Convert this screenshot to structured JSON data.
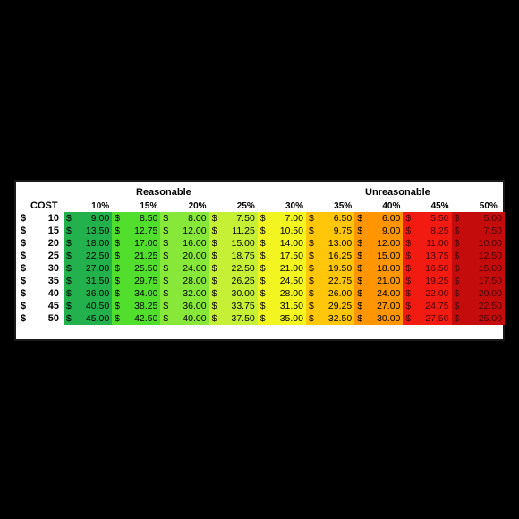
{
  "chart_data": {
    "type": "table",
    "group_labels": {
      "reasonable": "Reasonable",
      "unreasonable": "Unreasonable"
    },
    "row_header": "COST",
    "currency_symbol": "$",
    "columns": [
      "10%",
      "15%",
      "20%",
      "25%",
      "30%",
      "35%",
      "40%",
      "45%",
      "50%"
    ],
    "column_colors": [
      "#22b14c",
      "#52de2d",
      "#88e83a",
      "#c5f035",
      "#f3f520",
      "#ffc60a",
      "#ff9500",
      "#f21b12",
      "#c40c0c"
    ],
    "column_text_colors": [
      "#000000",
      "#000000",
      "#000000",
      "#000000",
      "#000000",
      "#000000",
      "#000000",
      "#4a0505",
      "#4a0505"
    ],
    "rows": [
      {
        "cost": "10",
        "values": [
          "9.00",
          "8.50",
          "8.00",
          "7.50",
          "7.00",
          "6.50",
          "6.00",
          "5.50",
          "5.00"
        ]
      },
      {
        "cost": "15",
        "values": [
          "13.50",
          "12.75",
          "12.00",
          "11.25",
          "10.50",
          "9.75",
          "9.00",
          "8.25",
          "7.50"
        ]
      },
      {
        "cost": "20",
        "values": [
          "18.00",
          "17.00",
          "16.00",
          "15.00",
          "14.00",
          "13.00",
          "12.00",
          "11.00",
          "10.00"
        ]
      },
      {
        "cost": "25",
        "values": [
          "22.50",
          "21.25",
          "20.00",
          "18.75",
          "17.50",
          "16.25",
          "15.00",
          "13.75",
          "12.50"
        ]
      },
      {
        "cost": "30",
        "values": [
          "27.00",
          "25.50",
          "24.00",
          "22.50",
          "21.00",
          "19.50",
          "18.00",
          "16.50",
          "15.00"
        ]
      },
      {
        "cost": "35",
        "values": [
          "31.50",
          "29.75",
          "28.00",
          "26.25",
          "24.50",
          "22.75",
          "21.00",
          "19.25",
          "17.50"
        ]
      },
      {
        "cost": "40",
        "values": [
          "36.00",
          "34.00",
          "32.00",
          "30.00",
          "28.00",
          "26.00",
          "24.00",
          "22.00",
          "20.00"
        ]
      },
      {
        "cost": "45",
        "values": [
          "40.50",
          "38.25",
          "36.00",
          "33.75",
          "31.50",
          "29.25",
          "27.00",
          "24.75",
          "22.50"
        ]
      },
      {
        "cost": "50",
        "values": [
          "45.00",
          "42.50",
          "40.00",
          "37.50",
          "35.00",
          "32.50",
          "30.00",
          "27.50",
          "25.00"
        ]
      }
    ]
  }
}
